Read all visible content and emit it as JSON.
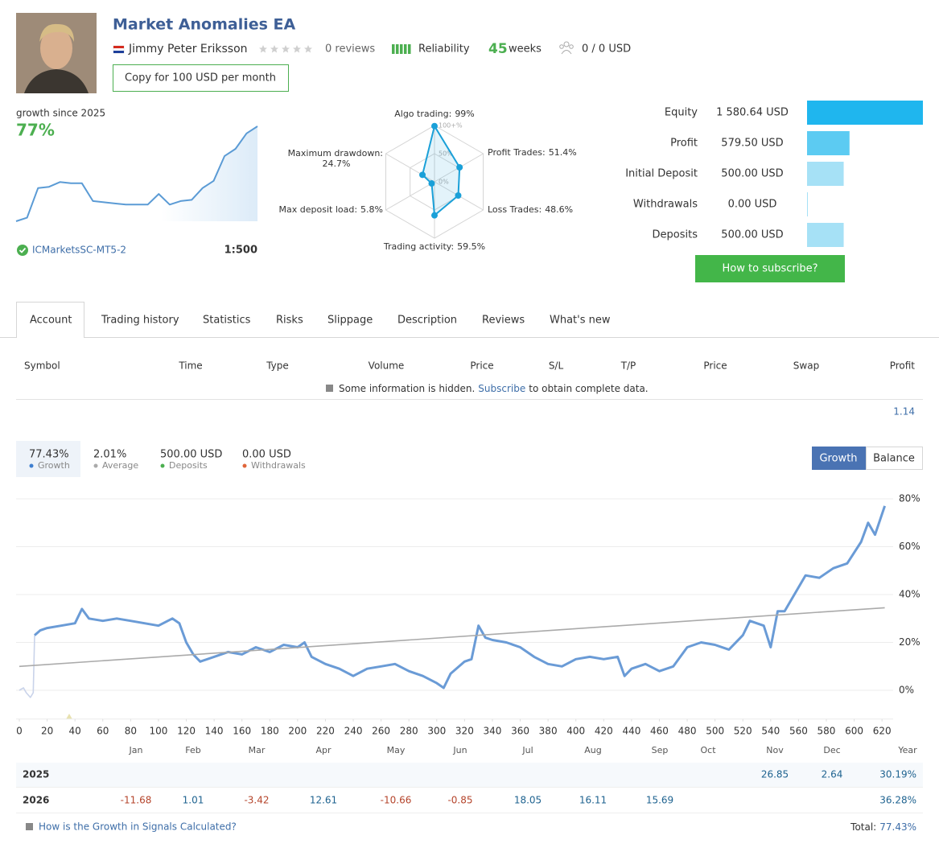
{
  "header": {
    "title": "Market Anomalies EA",
    "author": "Jimmy Peter Eriksson",
    "reviews": "0 reviews",
    "reliability": "Reliability",
    "weeks_number": "45",
    "weeks_label": "weeks",
    "subscribers": "0 / 0 USD",
    "copy_button": "Copy for 100 USD per month"
  },
  "summary": {
    "growth_label": "growth since 2025",
    "growth_value": "77%",
    "server": "ICMarketsSC-MT5-2",
    "leverage": "1:500",
    "subscribe_button": "How to subscribe?"
  },
  "tabs": [
    "Account",
    "Trading history",
    "Statistics",
    "Risks",
    "Slippage",
    "Description",
    "Reviews",
    "What's new"
  ],
  "table": {
    "columns": [
      "Symbol",
      "Time",
      "Type",
      "Volume",
      "Price",
      "S/L",
      "T/P",
      "Price",
      "Swap",
      "Profit"
    ],
    "notice": "Some information is hidden.",
    "notice_link": "Subscribe",
    "notice_rest": "to obtain complete data.",
    "total": "1.14"
  },
  "stats": [
    {
      "value": "77.43%",
      "label": "Growth",
      "color": "#3f7fd0"
    },
    {
      "value": "2.01%",
      "label": "Average",
      "color": "#aaaaaa"
    },
    {
      "value": "500.00 USD",
      "label": "Deposits",
      "color": "#4caf50"
    },
    {
      "value": "0.00 USD",
      "label": "Withdrawals",
      "color": "#e0653a"
    }
  ],
  "toggle": [
    "Growth",
    "Balance"
  ],
  "monthly": {
    "months": [
      "Jan",
      "Feb",
      "Mar",
      "Apr",
      "May",
      "Jun",
      "Jul",
      "Aug",
      "Sep",
      "Oct",
      "Nov",
      "Dec",
      "Year"
    ],
    "rows": [
      {
        "year": "2025",
        "values": [
          null,
          null,
          null,
          null,
          null,
          null,
          null,
          null,
          null,
          null,
          26.85,
          2.64
        ],
        "total": "30.19%"
      },
      {
        "year": "2026",
        "values": [
          -11.68,
          1.01,
          -3.42,
          12.61,
          -10.66,
          -0.85,
          18.05,
          16.11,
          15.69,
          null,
          null,
          null
        ],
        "total": "36.28%"
      }
    ]
  },
  "footer": {
    "help": "How is the Growth in Signals Calculated?",
    "total_label": "Total:",
    "total_value": "77.43%"
  },
  "chart_data": [
    {
      "type": "line",
      "series": [
        {
          "color": "#5b9bd5",
          "values": [
            -3,
            0,
            25,
            26,
            30,
            29,
            29,
            14,
            13,
            12,
            11,
            11,
            11,
            20,
            11,
            14,
            15,
            25,
            31,
            52,
            58,
            71,
            77
          ]
        }
      ]
    },
    {
      "type": "radar",
      "categories": [
        "Algo trading:",
        "Profit Trades:",
        "Loss Trades:",
        "Trading activity:",
        "Max deposit load:",
        "Maximum drawdown:"
      ],
      "values": [
        99,
        51.4,
        48.6,
        59.5,
        5.8,
        24.7
      ],
      "value_labels": [
        "99%",
        "51.4%",
        "48.6%",
        "59.5%",
        "5.8%",
        "24.7%"
      ],
      "rlim": [
        0,
        100
      ],
      "rticks": [
        {
          "value": 100,
          "label": "100+%"
        },
        {
          "value": 50,
          "label": "50%"
        },
        {
          "value": 0,
          "label": "0%"
        }
      ],
      "color": "#1aa0d8"
    },
    {
      "type": "bar",
      "orientation": "horizontal",
      "categories": [
        "Equity",
        "Profit",
        "Initial Deposit",
        "Withdrawals",
        "Deposits"
      ],
      "values": [
        1580.64,
        579.5,
        500.0,
        0.0,
        500.0
      ],
      "value_labels": [
        "1 580.64 USD",
        "579.50 USD",
        "500.00 USD",
        "0.00 USD",
        "500.00 USD"
      ],
      "colors": [
        "#1fb6ee",
        "#5ccbf2",
        "#a6e1f6",
        "#a6e1f6",
        "#a6e1f6"
      ]
    },
    {
      "type": "line",
      "xlim": [
        0,
        628
      ],
      "ylim": [
        -12,
        80
      ],
      "xticks": [
        0,
        20,
        40,
        60,
        80,
        100,
        120,
        140,
        160,
        180,
        200,
        220,
        240,
        260,
        280,
        300,
        320,
        340,
        360,
        380,
        400,
        420,
        440,
        460,
        480,
        500,
        520,
        540,
        560,
        580,
        600,
        620
      ],
      "yticks": [
        {
          "value": 0,
          "label": "0%"
        },
        {
          "value": 20,
          "label": "20%"
        },
        {
          "value": 40,
          "label": "40%"
        },
        {
          "value": 60,
          "label": "60%"
        },
        {
          "value": 80,
          "label": "80%"
        }
      ],
      "grid": true,
      "series": [
        {
          "color": "#c9d3ea",
          "x": [
            0,
            3,
            5,
            8,
            10,
            11
          ],
          "values": [
            0,
            1,
            -1,
            -3,
            -1,
            23
          ]
        },
        {
          "color": "#6a9bd6",
          "x": [
            11,
            15,
            20,
            30,
            40,
            45,
            50,
            60,
            70,
            80,
            90,
            100,
            110,
            115,
            120,
            125,
            130,
            140,
            150,
            160,
            170,
            180,
            190,
            200,
            205,
            210,
            220,
            230,
            240,
            250,
            260,
            270,
            280,
            290,
            300,
            305,
            310,
            320,
            325,
            330,
            335,
            340,
            350,
            360,
            370,
            380,
            390,
            400,
            410,
            420,
            430,
            435,
            440,
            450,
            460,
            470,
            480,
            490,
            500,
            510,
            520,
            525,
            535,
            540,
            545,
            550,
            560,
            565,
            575,
            585,
            595,
            605,
            610,
            615,
            622
          ],
          "values": [
            23,
            25,
            26,
            27,
            28,
            34,
            30,
            29,
            30,
            29,
            28,
            27,
            30,
            28,
            20,
            15,
            12,
            14,
            16,
            15,
            18,
            16,
            19,
            18,
            20,
            14,
            11,
            9,
            6,
            9,
            10,
            11,
            8,
            6,
            3,
            1,
            7,
            12,
            13,
            27,
            22,
            21,
            20,
            18,
            14,
            11,
            10,
            13,
            14,
            13,
            14,
            6,
            9,
            11,
            8,
            10,
            18,
            20,
            19,
            17,
            23,
            29,
            27,
            18,
            33,
            33,
            43,
            48,
            47,
            51,
            53,
            62,
            70,
            65,
            77
          ]
        },
        {
          "color": "#aaaaaa",
          "x": [
            0,
            622
          ],
          "values": [
            10,
            34.5
          ]
        }
      ]
    }
  ]
}
